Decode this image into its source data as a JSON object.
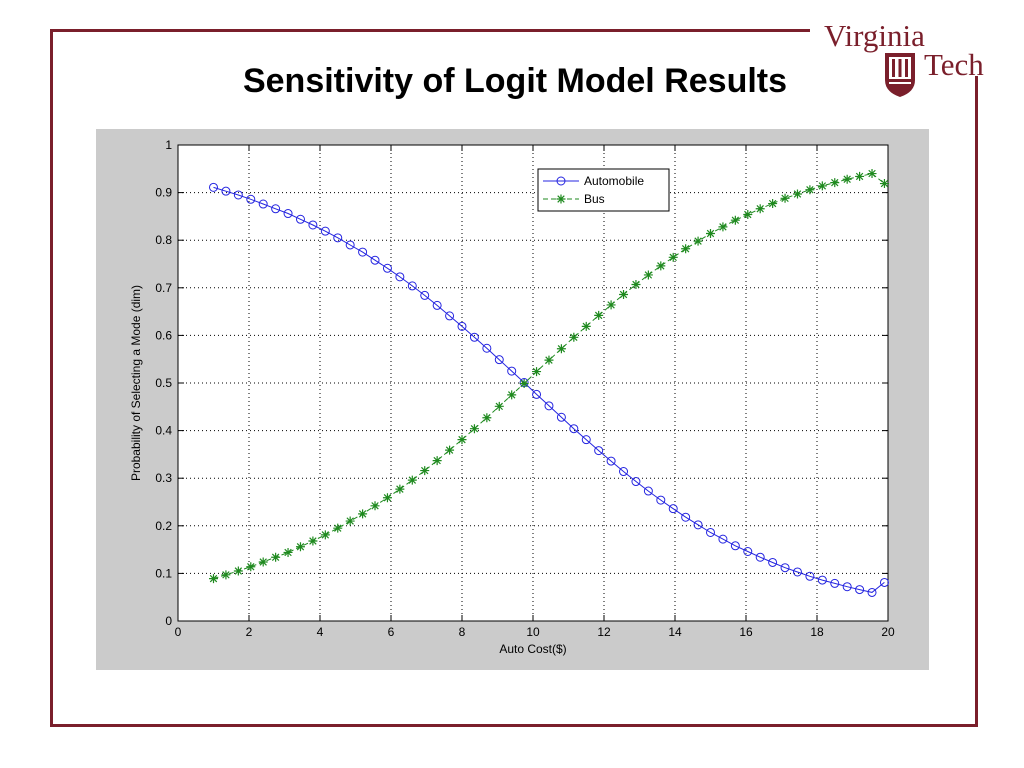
{
  "slide": {
    "title": "Sensitivity of Logit Model Results",
    "logo_text_1": "Virginia",
    "logo_text_2": "Tech"
  },
  "colors": {
    "frame": "#7a1f2b",
    "automobile": "#2424e0",
    "bus": "#1f8a1f",
    "chart_background": "#cbcbcb"
  },
  "chart_data": {
    "type": "line",
    "xlabel": "Auto Cost($)",
    "ylabel": "Probability of Selecting a Mode (dim)",
    "xlim": [
      0,
      20
    ],
    "ylim": [
      0,
      1
    ],
    "x_ticks": [
      0,
      2,
      4,
      6,
      8,
      10,
      12,
      14,
      16,
      18,
      20
    ],
    "y_ticks": [
      0,
      0.1,
      0.2,
      0.3,
      0.4,
      0.5,
      0.6,
      0.7,
      0.8,
      0.9,
      1
    ],
    "grid": true,
    "legend_position": "top-center",
    "x": [
      1.0,
      1.35,
      1.7,
      2.05,
      2.4,
      2.75,
      3.1,
      3.45,
      3.8,
      4.15,
      4.5,
      4.85,
      5.2,
      5.55,
      5.9,
      6.25,
      6.6,
      6.95,
      7.3,
      7.65,
      8.0,
      8.35,
      8.7,
      9.05,
      9.4,
      9.75,
      10.1,
      10.45,
      10.8,
      11.15,
      11.5,
      11.85,
      12.2,
      12.55,
      12.9,
      13.25,
      13.6,
      13.95,
      14.3,
      14.65,
      15.0,
      15.35,
      15.7,
      16.05,
      16.4,
      16.75,
      17.1,
      17.45,
      17.8,
      18.15,
      18.5,
      18.85,
      19.2,
      19.55,
      19.9
    ],
    "series": [
      {
        "name": "Automobile",
        "marker": "circle",
        "line": "solid",
        "values": [
          0.911,
          0.903,
          0.895,
          0.886,
          0.876,
          0.866,
          0.856,
          0.844,
          0.832,
          0.819,
          0.805,
          0.79,
          0.775,
          0.758,
          0.741,
          0.723,
          0.704,
          0.684,
          0.663,
          0.641,
          0.619,
          0.596,
          0.573,
          0.549,
          0.525,
          0.501,
          0.476,
          0.452,
          0.428,
          0.404,
          0.381,
          0.358,
          0.336,
          0.314,
          0.293,
          0.273,
          0.254,
          0.236,
          0.218,
          0.202,
          0.186,
          0.172,
          0.158,
          0.146,
          0.134,
          0.123,
          0.112,
          0.103,
          0.094,
          0.086,
          0.079,
          0.072,
          0.066,
          0.06,
          0.081
        ]
      },
      {
        "name": "Bus",
        "marker": "star",
        "line": "dashed",
        "values": [
          0.089,
          0.097,
          0.105,
          0.114,
          0.124,
          0.134,
          0.144,
          0.156,
          0.168,
          0.181,
          0.195,
          0.21,
          0.225,
          0.242,
          0.259,
          0.277,
          0.296,
          0.316,
          0.337,
          0.359,
          0.381,
          0.404,
          0.427,
          0.451,
          0.475,
          0.499,
          0.524,
          0.548,
          0.572,
          0.596,
          0.619,
          0.642,
          0.664,
          0.686,
          0.707,
          0.727,
          0.746,
          0.764,
          0.782,
          0.798,
          0.814,
          0.828,
          0.842,
          0.854,
          0.866,
          0.877,
          0.888,
          0.897,
          0.906,
          0.914,
          0.921,
          0.928,
          0.934,
          0.94,
          0.919
        ]
      }
    ]
  }
}
